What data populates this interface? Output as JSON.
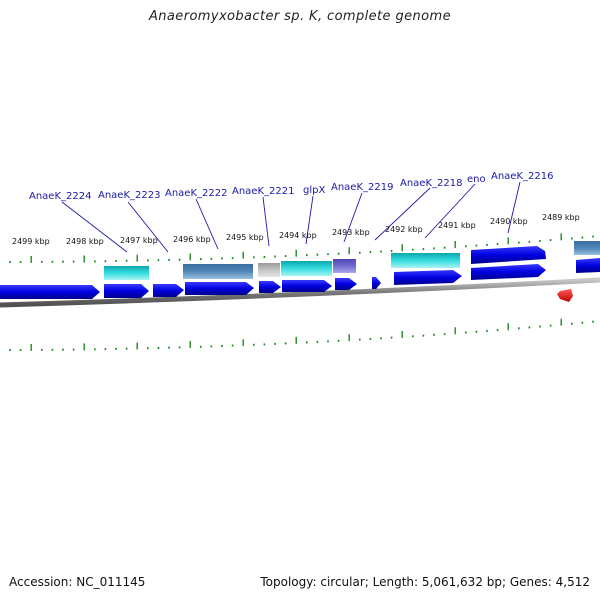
{
  "title": "Anaeromyxobacter sp. K, complete genome",
  "accession": "Accession: NC_011145",
  "summary": "Topology: circular; Length: 5,061,632 bp; Genes: 4,512",
  "colors": {
    "gene_forward": "#0a0ae6",
    "gene_cds_cyan": "#33d6d9",
    "gene_cds_steel": "#4a7fb0",
    "gene_cds_gray": "#bdbdbd",
    "gene_cds_slate": "#6a63c8",
    "pseudo_red": "#e8222a",
    "tick_green": "#1e8a1e",
    "label_blue": "#1a1aa6"
  },
  "ticks": [
    {
      "label": "2499 kbp"
    },
    {
      "label": "2498 kbp"
    },
    {
      "label": "2497 kbp"
    },
    {
      "label": "2496 kbp"
    },
    {
      "label": "2495 kbp"
    },
    {
      "label": "2494 kbp"
    },
    {
      "label": "2493 kbp"
    },
    {
      "label": "2492 kbp"
    },
    {
      "label": "2491 kbp"
    },
    {
      "label": "2490 kbp"
    },
    {
      "label": "2489 kbp"
    }
  ],
  "gene_labels": [
    {
      "text": "AnaeK_2224"
    },
    {
      "text": "AnaeK_2223"
    },
    {
      "text": "AnaeK_2222"
    },
    {
      "text": "AnaeK_2221"
    },
    {
      "text": "glpX"
    },
    {
      "text": "AnaeK_2219"
    },
    {
      "text": "AnaeK_2218"
    },
    {
      "text": "eno"
    },
    {
      "text": "AnaeK_2216"
    }
  ]
}
